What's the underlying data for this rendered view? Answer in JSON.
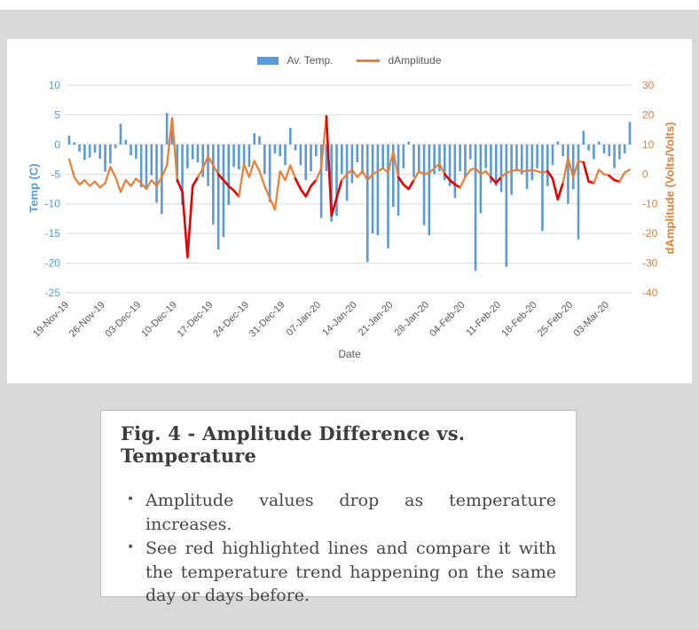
{
  "chart": {
    "background": "#ffffff",
    "page_background": "#d9d9d9"
  },
  "chart_data": {
    "type": "bar+line combo (dual axis)",
    "xlabel": "Date",
    "grid": "horizontal, light gray",
    "legend_position": "top center",
    "x_tick_labels": [
      "19-Nov-19",
      "26-Nov-19",
      "03-Dec-19",
      "10-Dec-19",
      "17-Dec-19",
      "24-Dec-19",
      "31-Dec-19",
      "07-Jan-20",
      "14-Jan-20",
      "21-Jan-20",
      "28-Jan-20",
      "04-Feb-20",
      "11-Feb-20",
      "18-Feb-20",
      "25-Feb-20",
      "03-Mar-20"
    ],
    "x_tick_every_n_points": 7,
    "left_axis": {
      "title": "Temp (C)",
      "ticks": [
        10,
        5,
        0,
        -5,
        -10,
        -15,
        -20,
        -25
      ],
      "range": [
        -25,
        10
      ],
      "color": "#5b9bd5"
    },
    "right_axis": {
      "title": "dAmplitude (Volts/Volts)",
      "ticks": [
        30,
        20,
        10,
        0,
        -10,
        -20,
        -30,
        -40
      ],
      "range": [
        -40,
        30
      ],
      "color": "#ed7d31"
    },
    "series": [
      {
        "name": "Av. Temp.",
        "type": "bar",
        "axis": "left",
        "color": "#5b9bd5",
        "values": [
          1.5,
          0.4,
          -1.2,
          -2.6,
          -2.2,
          -1.4,
          -2.4,
          -4.6,
          -3.2,
          -0.6,
          3.5,
          0.8,
          -1.8,
          -2.4,
          -7.2,
          -7.6,
          -5.2,
          -9.8,
          -11.7,
          5.3,
          4.3,
          -6.4,
          -10.2,
          -4,
          -2.5,
          -3,
          -5.5,
          -7,
          -13.5,
          -17.7,
          -15.6,
          -10.2,
          -3.8,
          -4.2,
          -4,
          -3.8,
          1.9,
          1.4,
          -5,
          -9.7,
          -1.5,
          -2,
          -3.5,
          2.8,
          -1,
          -3.5,
          -6,
          -4.5,
          -2,
          -12.4,
          -4.5,
          -13,
          -12,
          -5,
          -9.5,
          -6.5,
          -3,
          -5,
          -19.8,
          -15,
          -15.3,
          -4,
          -17.5,
          -10.5,
          -12,
          -4,
          0.5,
          -5.5,
          -4.5,
          -13.6,
          -15.3,
          -5,
          -4.5,
          -6,
          -7,
          -9,
          -4.5,
          -5.5,
          -2.5,
          -21.3,
          -11.6,
          -4,
          -6.5,
          -7,
          -8,
          -20.6,
          -8.5,
          -4.5,
          -5,
          -7.5,
          -6,
          -4,
          -14.6,
          -7,
          -3.5,
          0.5,
          -2,
          -10,
          -7.5,
          -16,
          2.3,
          -1,
          -2.5,
          0.5,
          -1.5,
          -2,
          -4,
          -2.5,
          -1.5,
          3.8
        ]
      },
      {
        "name": "dAmplitude",
        "type": "line",
        "axis": "right",
        "color": "#ed7d31",
        "highlight_color": "#e60000",
        "highlight_note": "red highlighted segments mark amplitude drops",
        "red_segment_ranges": [
          [
            21,
            25
          ],
          [
            29,
            33
          ],
          [
            44,
            48
          ],
          [
            50,
            53
          ],
          [
            64,
            67
          ],
          [
            73,
            76
          ],
          [
            82,
            84
          ],
          [
            93,
            96
          ],
          [
            100,
            102
          ],
          [
            105,
            107
          ]
        ],
        "values": [
          5,
          -1,
          -3.5,
          -2,
          -4,
          -2.5,
          -4.5,
          -3,
          2.5,
          -1,
          -6,
          -2,
          -4,
          -1.5,
          -3,
          -5,
          -2,
          -4,
          -1,
          3,
          19,
          -2,
          -6,
          -28,
          -4,
          -1,
          2,
          6,
          3,
          0,
          -2,
          -4,
          -5.5,
          -7.5,
          3.5,
          -1,
          4.5,
          1,
          -4,
          -8,
          -12,
          1,
          -2,
          3,
          -1.5,
          -5,
          -7.5,
          -4,
          -2,
          2,
          19.5,
          -14,
          -8,
          -2,
          0,
          1.5,
          -1,
          1,
          -2,
          0,
          1,
          2,
          0.5,
          7.5,
          -1,
          -3.5,
          -5,
          -2,
          1,
          0,
          0.5,
          2,
          3.5,
          0,
          -2,
          -3.5,
          -4.5,
          -1,
          1.5,
          2,
          0,
          1,
          -1,
          -3,
          -1,
          0.5,
          1,
          1.5,
          1,
          1,
          1.5,
          1,
          0.5,
          1,
          -1.5,
          -8.5,
          -3,
          5.5,
          -1,
          4.5,
          4,
          -2.5,
          -3,
          1.5,
          0,
          -0.5,
          -2,
          -2.5,
          0.5,
          1.5
        ]
      }
    ],
    "style": {
      "grid_color": "#d9d9d9",
      "tick_text_color": "#595959"
    }
  },
  "caption": {
    "title": "Fig. 4 - Amplitude Difference vs. Temperature",
    "bullets": [
      "Amplitude values drop as temperature increases.",
      "See red highlighted lines and compare it with the temperature trend happening on the same day or days before."
    ]
  }
}
